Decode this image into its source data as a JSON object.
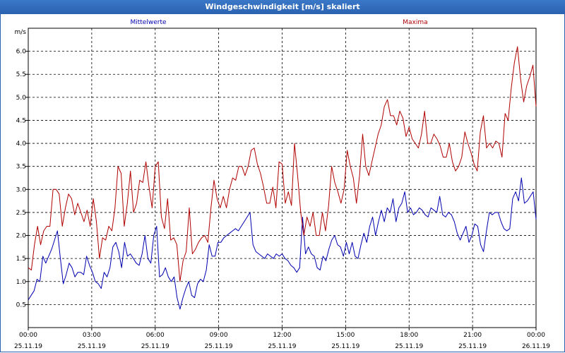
{
  "window": {
    "title": "Windgeschwindigkeit [m/s] skaliert"
  },
  "chart_data": {
    "type": "line",
    "title": "Windgeschwindigkeit [m/s] skaliert",
    "ylabel": "m/s",
    "xlabel": "",
    "ylim": [
      0.0,
      6.5
    ],
    "yticks": [
      "0.5",
      "1.0",
      "1.5",
      "2.0",
      "2.5",
      "3.0",
      "3.5",
      "4.0",
      "4.5",
      "5.0",
      "5.5",
      "6.0"
    ],
    "ytick_values": [
      0.5,
      1.0,
      1.5,
      2.0,
      2.5,
      3.0,
      3.5,
      4.0,
      4.5,
      5.0,
      5.5,
      6.0
    ],
    "xticks": [
      {
        "time": "00:00",
        "date": "25.11.19"
      },
      {
        "time": "03:00",
        "date": "25.11.19"
      },
      {
        "time": "06:00",
        "date": "25.11.19"
      },
      {
        "time": "09:00",
        "date": "25.11.19"
      },
      {
        "time": "12:00",
        "date": "25.11.19"
      },
      {
        "time": "15:00",
        "date": "25.11.19"
      },
      {
        "time": "18:00",
        "date": "25.11.19"
      },
      {
        "time": "21:00",
        "date": "25.11.19"
      },
      {
        "time": "00:00",
        "date": "26.11.19"
      }
    ],
    "x_unit": "hours since 25.11.19 00:00",
    "grid": true,
    "series": [
      {
        "name": "Mittelwerte",
        "color": "#0000b0",
        "values": [
          0.6,
          0.7,
          0.8,
          1.05,
          1.0,
          1.55,
          1.4,
          1.55,
          1.7,
          1.9,
          2.1,
          1.5,
          0.95,
          1.15,
          1.4,
          1.3,
          1.1,
          1.2,
          1.2,
          1.15,
          1.55,
          1.35,
          1.2,
          1.0,
          0.95,
          0.85,
          1.2,
          1.1,
          1.3,
          1.75,
          1.85,
          1.65,
          1.3,
          1.85,
          1.55,
          1.6,
          1.5,
          1.4,
          1.35,
          1.6,
          2.0,
          1.5,
          1.4,
          2.0,
          2.2,
          1.1,
          1.15,
          1.3,
          1.1,
          1.0,
          1.1,
          0.65,
          0.4,
          0.65,
          0.85,
          1.0,
          0.7,
          0.65,
          0.95,
          1.05,
          1.0,
          1.25,
          1.8,
          1.55,
          1.55,
          1.85,
          1.85,
          1.95,
          2.0,
          2.05,
          2.1,
          2.15,
          2.1,
          2.2,
          2.3,
          2.4,
          2.5,
          1.8,
          1.65,
          1.6,
          1.55,
          1.5,
          1.6,
          1.55,
          1.5,
          1.6,
          1.55,
          1.6,
          1.5,
          1.45,
          1.35,
          1.3,
          1.2,
          1.3,
          2.4,
          1.6,
          1.75,
          1.6,
          1.55,
          1.3,
          1.25,
          1.55,
          1.45,
          1.7,
          1.9,
          2.0,
          1.8,
          1.75,
          1.55,
          1.85,
          1.6,
          1.85,
          1.55,
          1.5,
          1.8,
          2.05,
          1.85,
          2.2,
          2.4,
          2.0,
          2.3,
          2.55,
          2.3,
          2.6,
          2.5,
          2.8,
          2.3,
          2.6,
          2.7,
          2.95,
          2.5,
          2.6,
          2.45,
          2.5,
          2.6,
          2.55,
          2.45,
          2.4,
          2.6,
          2.55,
          2.5,
          2.85,
          2.45,
          2.4,
          2.5,
          2.45,
          2.3,
          2.05,
          1.9,
          2.05,
          2.2,
          1.85,
          2.0,
          2.25,
          2.2,
          1.8,
          1.65,
          2.1,
          2.5,
          2.45,
          2.5,
          2.5,
          2.3,
          2.15,
          2.1,
          2.15,
          2.8,
          2.95,
          2.75,
          3.25,
          2.7,
          2.75,
          2.85,
          2.95,
          2.35
        ]
      },
      {
        "name": "Maxima",
        "color": "#b00000",
        "values": [
          1.3,
          1.25,
          1.8,
          2.2,
          1.8,
          2.1,
          2.2,
          2.2,
          3.0,
          3.0,
          2.9,
          2.2,
          2.6,
          2.9,
          2.8,
          2.45,
          2.7,
          2.5,
          2.3,
          2.55,
          2.2,
          2.8,
          2.3,
          1.5,
          1.95,
          1.9,
          2.2,
          2.1,
          2.6,
          3.5,
          3.35,
          2.2,
          2.7,
          3.4,
          2.5,
          2.7,
          3.2,
          3.15,
          3.6,
          3.05,
          2.6,
          3.5,
          3.6,
          2.4,
          2.15,
          2.8,
          1.9,
          1.95,
          1.8,
          1.0,
          1.45,
          1.65,
          2.6,
          1.6,
          1.7,
          1.85,
          1.95,
          2.0,
          1.85,
          2.6,
          3.2,
          2.8,
          2.6,
          2.85,
          2.6,
          3.0,
          3.25,
          3.2,
          3.5,
          3.5,
          3.3,
          3.5,
          3.85,
          3.9,
          3.55,
          3.35,
          3.05,
          2.7,
          2.7,
          3.05,
          2.6,
          3.6,
          3.55,
          2.7,
          2.95,
          2.65,
          4.0,
          3.3,
          2.5,
          2.0,
          2.4,
          2.2,
          2.5,
          2.0,
          2.0,
          2.5,
          2.1,
          2.65,
          3.5,
          3.15,
          2.95,
          2.7,
          3.0,
          3.85,
          3.5,
          3.25,
          2.7,
          3.3,
          4.2,
          3.5,
          3.3,
          3.6,
          3.9,
          4.2,
          4.4,
          4.8,
          4.95,
          4.6,
          4.6,
          4.4,
          4.7,
          4.55,
          4.15,
          4.35,
          4.1,
          4.0,
          3.9,
          4.2,
          4.7,
          4.0,
          4.0,
          4.2,
          4.1,
          3.95,
          3.7,
          3.7,
          4.0,
          3.6,
          3.4,
          3.5,
          3.7,
          4.25,
          4.0,
          3.8,
          3.55,
          3.4,
          4.25,
          4.6,
          3.9,
          4.0,
          3.9,
          4.05,
          4.0,
          3.7,
          4.65,
          4.5,
          5.2,
          5.75,
          6.1,
          5.4,
          4.9,
          5.25,
          5.45,
          5.7,
          4.8
        ]
      }
    ]
  }
}
